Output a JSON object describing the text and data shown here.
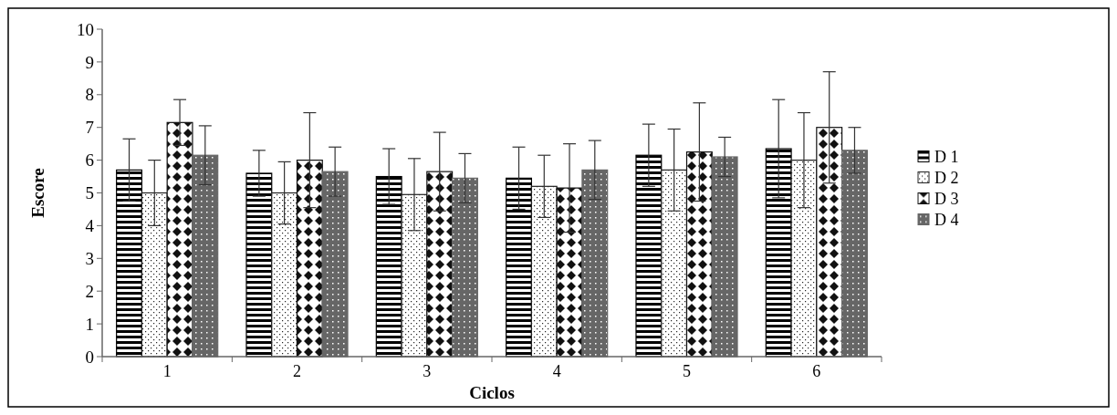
{
  "chart_data": {
    "type": "bar",
    "xlabel": "Ciclos",
    "ylabel": "Escore",
    "categories": [
      "1",
      "2",
      "3",
      "4",
      "5",
      "6"
    ],
    "ylim": [
      0,
      10
    ],
    "yticks": [
      0,
      1,
      2,
      3,
      4,
      5,
      6,
      7,
      8,
      9,
      10
    ],
    "grid": false,
    "legend": "right",
    "series": [
      {
        "name": "D 1",
        "color": "#000000",
        "values": [
          5.7,
          5.6,
          5.5,
          5.45,
          6.15,
          6.35
        ],
        "errors": [
          0.95,
          0.7,
          0.85,
          0.95,
          0.95,
          1.5
        ]
      },
      {
        "name": "D 2",
        "color": "#222222",
        "values": [
          5.0,
          5.0,
          4.95,
          5.2,
          5.7,
          6.0
        ],
        "errors": [
          1.0,
          0.95,
          1.1,
          0.95,
          1.25,
          1.45
        ]
      },
      {
        "name": "D 3",
        "color": "#111111",
        "values": [
          7.15,
          6.0,
          5.65,
          5.15,
          6.25,
          7.0
        ],
        "errors": [
          0.7,
          1.45,
          1.2,
          1.35,
          1.5,
          1.7
        ]
      },
      {
        "name": "D 4",
        "color": "#666666",
        "values": [
          6.15,
          5.65,
          5.45,
          5.7,
          6.1,
          6.3
        ],
        "errors": [
          0.9,
          0.75,
          0.75,
          0.9,
          0.6,
          0.7
        ]
      }
    ]
  }
}
